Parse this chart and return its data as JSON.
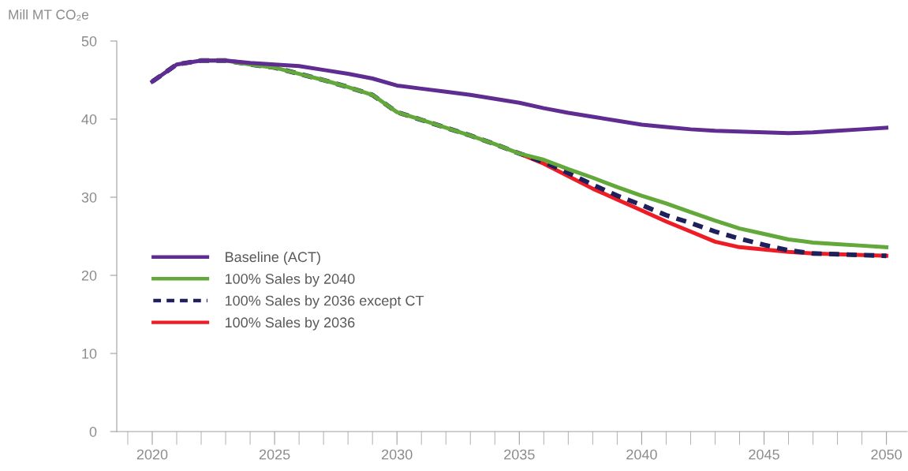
{
  "chart_data": {
    "type": "line",
    "ylabel": "Mill MT CO₂e",
    "x": [
      2020,
      2021,
      2022,
      2023,
      2024,
      2025,
      2026,
      2027,
      2028,
      2029,
      2030,
      2031,
      2032,
      2033,
      2034,
      2035,
      2036,
      2037,
      2038,
      2039,
      2040,
      2041,
      2042,
      2043,
      2044,
      2045,
      2046,
      2047,
      2048,
      2049,
      2050
    ],
    "xlim": [
      2018.55,
      2050.85
    ],
    "xticks": [
      2020,
      2025,
      2030,
      2035,
      2040,
      2045,
      2050
    ],
    "ylim": [
      0,
      50
    ],
    "yticks": [
      0,
      10,
      20,
      30,
      40,
      50
    ],
    "legend": "center left",
    "marker": "none",
    "series": [
      {
        "name": "Baseline (ACT)",
        "color": "#5f2d91",
        "line_style": "solid",
        "values": [
          44.8,
          47.0,
          47.5,
          47.5,
          47.2,
          47.0,
          46.8,
          46.3,
          45.8,
          45.2,
          44.3,
          43.9,
          43.5,
          43.1,
          42.6,
          42.1,
          41.4,
          40.8,
          40.3,
          39.8,
          39.3,
          39.0,
          38.7,
          38.5,
          38.4,
          38.3,
          38.2,
          38.3,
          38.5,
          38.7,
          38.9
        ]
      },
      {
        "name": "100% Sales by 2040",
        "color": "#62a83a",
        "line_style": "solid",
        "values": [
          null,
          null,
          47.5,
          47.5,
          47.0,
          46.6,
          45.8,
          45.0,
          44.1,
          43.1,
          40.9,
          39.9,
          38.9,
          37.9,
          36.8,
          35.6,
          34.8,
          33.6,
          32.5,
          31.3,
          30.2,
          29.2,
          28.1,
          27.0,
          26.0,
          25.3,
          24.6,
          24.2,
          24.0,
          23.8,
          23.6
        ]
      },
      {
        "name": "100% Sales by 2036 except CT",
        "color": "#1f1f5c",
        "line_style": "dashed",
        "values": [
          44.8,
          47.0,
          47.5,
          47.5,
          47.0,
          46.6,
          45.8,
          45.0,
          44.1,
          43.1,
          40.9,
          39.9,
          38.9,
          37.9,
          36.8,
          35.6,
          34.5,
          33.1,
          31.6,
          30.2,
          29.0,
          27.7,
          26.7,
          25.6,
          24.7,
          23.9,
          23.2,
          22.8,
          22.7,
          22.6,
          22.5
        ]
      },
      {
        "name": "100% Sales by 2036",
        "color": "#ee1c25",
        "line_style": "solid",
        "values": [
          null,
          null,
          null,
          null,
          null,
          null,
          null,
          null,
          null,
          null,
          null,
          null,
          null,
          null,
          null,
          35.6,
          34.3,
          32.7,
          31.1,
          29.7,
          28.3,
          26.9,
          25.6,
          24.3,
          23.6,
          23.3,
          23.0,
          22.8,
          22.7,
          22.6,
          22.5
        ]
      }
    ]
  }
}
